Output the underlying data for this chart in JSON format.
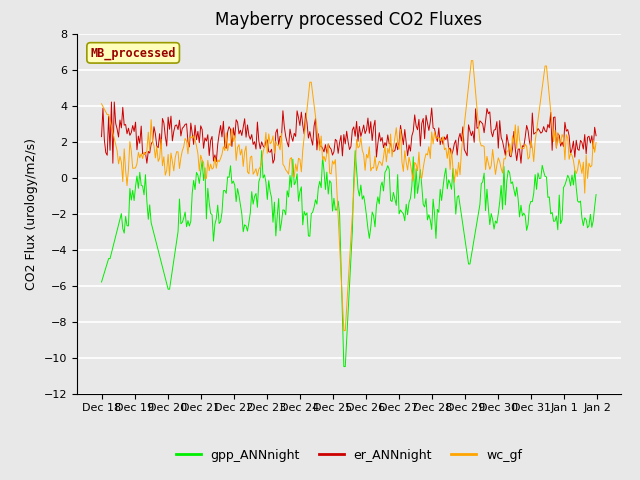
{
  "title": "Mayberry processed CO2 Fluxes",
  "ylabel": "CO2 Flux (urology/m2/s)",
  "ylim": [
    -12,
    8
  ],
  "yticks": [
    -12,
    -10,
    -8,
    -6,
    -4,
    -2,
    0,
    2,
    4,
    6,
    8
  ],
  "legend_label_text": "MB_processed",
  "legend_labels": [
    "gpp_ANNnight",
    "er_ANNnight",
    "wc_gf"
  ],
  "line_colors": [
    "#00ee00",
    "#cc0000",
    "#ffa500"
  ],
  "background_color": "#e8e8e8",
  "title_fontsize": 12,
  "axis_fontsize": 9,
  "tick_fontsize": 8,
  "n_points": 350,
  "seed": 42
}
